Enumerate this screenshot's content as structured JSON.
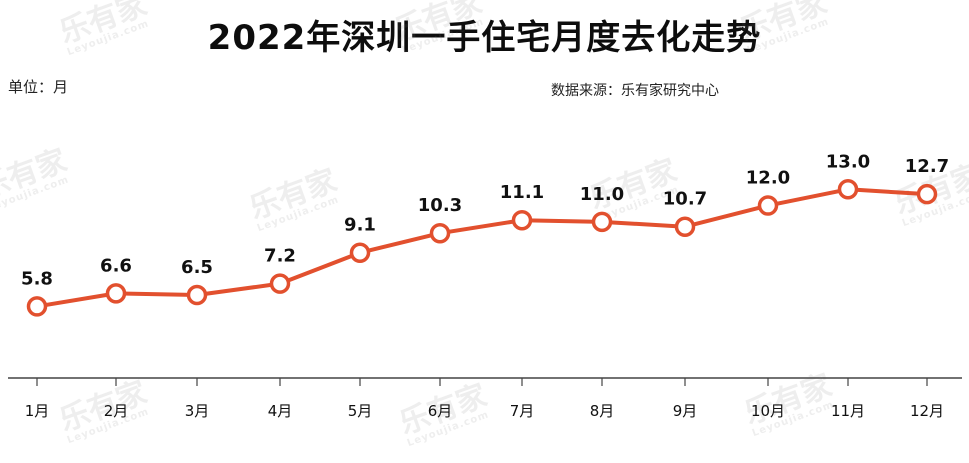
{
  "title": "2022年深圳一手住宅月度去化走势",
  "unit_label": "单位：月",
  "source_label": "数据来源：乐有家研究中心",
  "watermark": {
    "brand": "乐有家",
    "url": "Leyoujia.com"
  },
  "colors": {
    "line": "#e2502e",
    "marker_fill": "#ffffff",
    "axis": "#444444",
    "text": "#111111"
  },
  "chart_data": {
    "type": "line",
    "title": "2022年深圳一手住宅月度去化走势",
    "ylabel": "单位：月",
    "xlabel": "",
    "categories": [
      "1月",
      "2月",
      "3月",
      "4月",
      "5月",
      "6月",
      "7月",
      "8月",
      "9月",
      "10月",
      "11月",
      "12月"
    ],
    "values": [
      5.8,
      6.6,
      6.5,
      7.2,
      9.1,
      10.3,
      11.1,
      11.0,
      10.7,
      12.0,
      13.0,
      12.7
    ],
    "data_labels": [
      "5.8",
      "6.6",
      "6.5",
      "7.2",
      "9.1",
      "10.3",
      "11.1",
      "11.0",
      "10.7",
      "12.0",
      "13.0",
      "12.7"
    ],
    "ylim": [
      1.4,
      14.8
    ],
    "grid": false,
    "legend": "none"
  }
}
